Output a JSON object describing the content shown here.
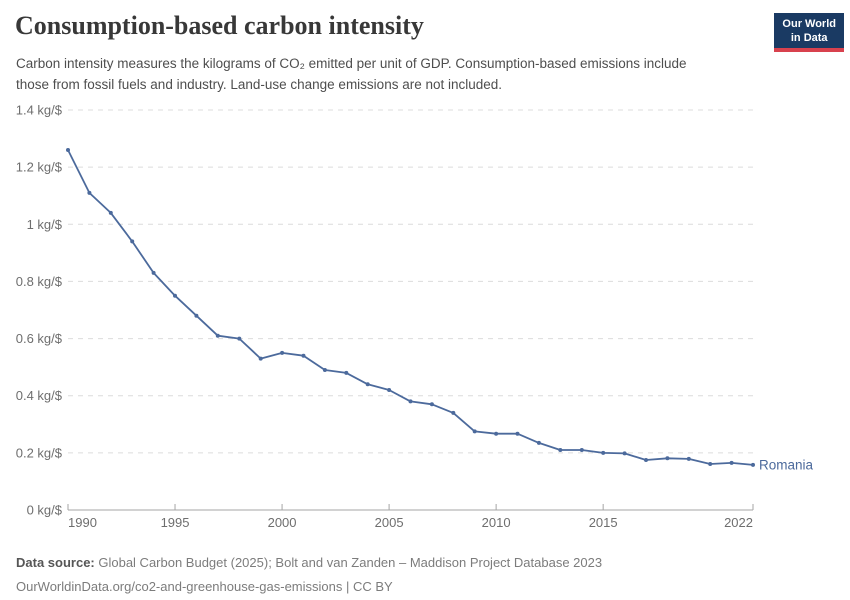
{
  "header": {
    "title": "Consumption-based carbon intensity",
    "subtitle": "Carbon intensity measures the kilograms of CO₂ emitted per unit of GDP. Consumption-based emissions include those from fossil fuels and industry. Land-use change emissions are not included."
  },
  "logo": {
    "line1": "Our World",
    "line2": "in Data",
    "bg_color": "#1a3a63",
    "accent_color": "#d8414e"
  },
  "footer": {
    "datasource_label": "Data source:",
    "datasource_text": " Global Carbon Budget (2025); Bolt and van Zanden – Maddison Project Database 2023",
    "citation_line": "OurWorldinData.org/co2-and-greenhouse-gas-emissions | CC BY"
  },
  "chart_data": {
    "type": "line",
    "title": "Consumption-based carbon intensity",
    "entity": "Romania",
    "unit": "kg/$",
    "xlim": [
      1990,
      2022
    ],
    "ylim": [
      0,
      1.4
    ],
    "grid": true,
    "legend_position": "end-of-line-label",
    "line_color": "#4c6a9c",
    "x": [
      1990,
      1991,
      1992,
      1993,
      1994,
      1995,
      1996,
      1997,
      1998,
      1999,
      2000,
      2001,
      2002,
      2003,
      2004,
      2005,
      2006,
      2007,
      2008,
      2009,
      2010,
      2011,
      2012,
      2013,
      2014,
      2015,
      2016,
      2017,
      2018,
      2019,
      2020,
      2021,
      2022
    ],
    "series": [
      {
        "name": "Romania",
        "color": "#4c6a9c",
        "values": [
          1.26,
          1.11,
          1.04,
          0.94,
          0.83,
          0.75,
          0.68,
          0.61,
          0.6,
          0.53,
          0.55,
          0.54,
          0.49,
          0.48,
          0.44,
          0.42,
          0.38,
          0.37,
          0.34,
          0.275,
          0.267,
          0.267,
          0.235,
          0.21,
          0.21,
          0.2,
          0.198,
          0.175,
          0.181,
          0.179,
          0.161,
          0.165,
          0.158
        ]
      }
    ],
    "y_ticks": [
      {
        "value": 0,
        "label": "0 kg/$"
      },
      {
        "value": 0.2,
        "label": "0.2 kg/$"
      },
      {
        "value": 0.4,
        "label": "0.4 kg/$"
      },
      {
        "value": 0.6,
        "label": "0.6 kg/$"
      },
      {
        "value": 0.8,
        "label": "0.8 kg/$"
      },
      {
        "value": 1,
        "label": "1 kg/$"
      },
      {
        "value": 1.2,
        "label": "1.2 kg/$"
      },
      {
        "value": 1.4,
        "label": "1.4 kg/$"
      }
    ],
    "x_ticks": [
      {
        "value": 1990,
        "label": "1990"
      },
      {
        "value": 1995,
        "label": "1995"
      },
      {
        "value": 2000,
        "label": "2000"
      },
      {
        "value": 2005,
        "label": "2005"
      },
      {
        "value": 2010,
        "label": "2010"
      },
      {
        "value": 2015,
        "label": "2015"
      },
      {
        "value": 2022,
        "label": "2022"
      }
    ]
  }
}
